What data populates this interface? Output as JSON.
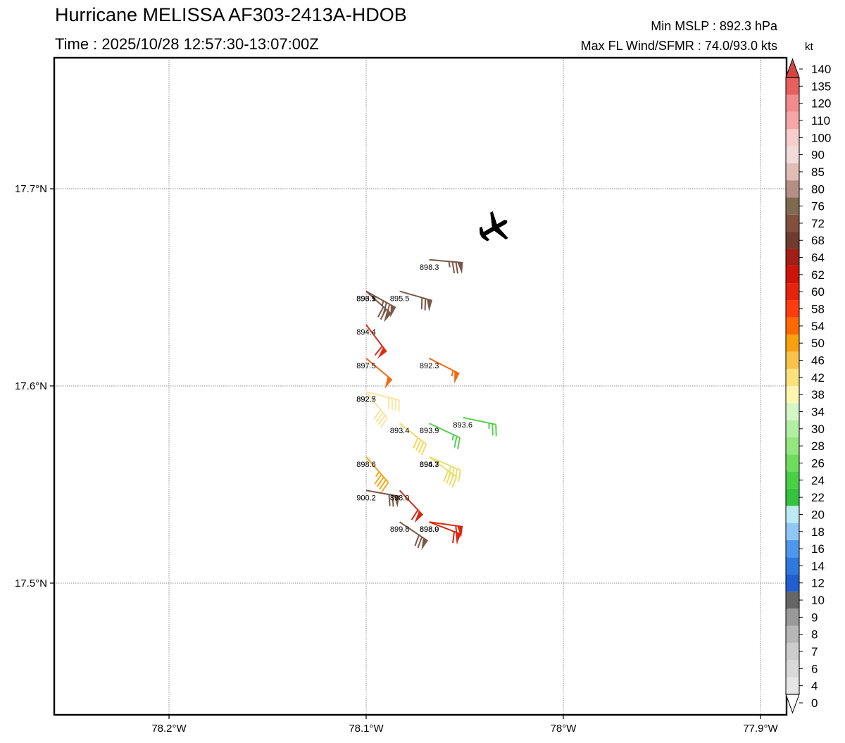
{
  "header": {
    "title": "Hurricane MELISSA AF303-2413A-HDOB",
    "time": "Time : 2025/10/28 12:57:30-13:07:00Z",
    "min_mslp": "Min MSLP : 892.3 hPa",
    "max_wind": "Max FL Wind/SFMR : 74.0/93.0 kts"
  },
  "map": {
    "lon_ticks": [
      {
        "value": -78.2,
        "label": "78.2°W"
      },
      {
        "value": -78.1,
        "label": "78.1°W"
      },
      {
        "value": -78.0,
        "label": "78°W"
      },
      {
        "value": -77.9,
        "label": "77.9°W"
      }
    ],
    "lat_ticks": [
      {
        "value": 17.7,
        "label": "17.7°N"
      },
      {
        "value": 17.6,
        "label": "17.6°N"
      },
      {
        "value": 17.5,
        "label": "17.5°N"
      }
    ],
    "aircraft": {
      "icon": "airplane-icon",
      "lon": -78.035,
      "lat": 17.68
    },
    "observations": [
      {
        "lon": -78.068,
        "lat": 17.664,
        "pressure": "898.3",
        "wind": 74,
        "color": "#7a5848"
      },
      {
        "lon": -78.1,
        "lat": 17.648,
        "pressure": "896.9",
        "wind": 72,
        "color": "#7a5848"
      },
      {
        "lon": -78.1,
        "lat": 17.648,
        "pressure": "893.1",
        "wind": 74,
        "color": "#7a5848"
      },
      {
        "lon": -78.083,
        "lat": 17.648,
        "pressure": "895.5",
        "wind": 72,
        "color": "#7a5848"
      },
      {
        "lon": -78.1,
        "lat": 17.631,
        "pressure": "894.4",
        "wind": 60,
        "color": "#e02b14"
      },
      {
        "lon": -78.1,
        "lat": 17.614,
        "pressure": "897.5",
        "wind": 50,
        "color": "#f26a12"
      },
      {
        "lon": -78.068,
        "lat": 17.614,
        "pressure": "892.3",
        "wind": 54,
        "color": "#f26a12"
      },
      {
        "lon": -78.1,
        "lat": 17.597,
        "pressure": "892.7",
        "wind": 38,
        "color": "#f9e5a0"
      },
      {
        "lon": -78.1,
        "lat": 17.597,
        "pressure": "892.5",
        "wind": 38,
        "color": "#f9e5a0"
      },
      {
        "lon": -78.083,
        "lat": 17.581,
        "pressure": "893.4",
        "wind": 38,
        "color": "#f4d862"
      },
      {
        "lon": -78.068,
        "lat": 17.581,
        "pressure": "893.9",
        "wind": 26,
        "color": "#57d052"
      },
      {
        "lon": -78.051,
        "lat": 17.584,
        "pressure": "893.6",
        "wind": 26,
        "color": "#57d052"
      },
      {
        "lon": -78.1,
        "lat": 17.564,
        "pressure": "898.6",
        "wind": 46,
        "color": "#f2a81e"
      },
      {
        "lon": -78.068,
        "lat": 17.564,
        "pressure": "896.7",
        "wind": 38,
        "color": "#e8e070"
      },
      {
        "lon": -78.068,
        "lat": 17.564,
        "pressure": "894.3",
        "wind": 38,
        "color": "#e8e070"
      },
      {
        "lon": -78.1,
        "lat": 17.547,
        "pressure": "900.2",
        "wind": 72,
        "color": "#7a5848"
      },
      {
        "lon": -78.083,
        "lat": 17.547,
        "pressure": "898.0",
        "wind": 58,
        "color": "#d42a12"
      },
      {
        "lon": -78.083,
        "lat": 17.531,
        "pressure": "899.8",
        "wind": 72,
        "color": "#7a5848"
      },
      {
        "lon": -78.068,
        "lat": 17.531,
        "pressure": "898.9",
        "wind": 62,
        "color": "#d42a12"
      },
      {
        "lon": -78.068,
        "lat": 17.531,
        "pressure": "898.0",
        "wind": 58,
        "color": "#d42a12"
      }
    ]
  },
  "colorbar": {
    "unit": "kt",
    "levels": [
      {
        "label": "0",
        "color": "#ffffff"
      },
      {
        "label": "4",
        "color": "#e6e6e6"
      },
      {
        "label": "6",
        "color": "#d9d9d9"
      },
      {
        "label": "7",
        "color": "#cdcdcd"
      },
      {
        "label": "8",
        "color": "#b7b7b7"
      },
      {
        "label": "9",
        "color": "#999999"
      },
      {
        "label": "10",
        "color": "#666666"
      },
      {
        "label": "12",
        "color": "#1f5fce"
      },
      {
        "label": "14",
        "color": "#2d79e0"
      },
      {
        "label": "16",
        "color": "#4d98ec"
      },
      {
        "label": "18",
        "color": "#8fc8f5"
      },
      {
        "label": "20",
        "color": "#bdeaf3"
      },
      {
        "label": "22",
        "color": "#33c33f"
      },
      {
        "label": "24",
        "color": "#49d045"
      },
      {
        "label": "26",
        "color": "#6edd5c"
      },
      {
        "label": "28",
        "color": "#92e77f"
      },
      {
        "label": "30",
        "color": "#b3efa3"
      },
      {
        "label": "34",
        "color": "#d3f7c7"
      },
      {
        "label": "38",
        "color": "#fff7b0"
      },
      {
        "label": "42",
        "color": "#fde27c"
      },
      {
        "label": "46",
        "color": "#f9c24a"
      },
      {
        "label": "50",
        "color": "#f7a10f"
      },
      {
        "label": "54",
        "color": "#ff6a00"
      },
      {
        "label": "58",
        "color": "#ff3b0f"
      },
      {
        "label": "60",
        "color": "#e8230b"
      },
      {
        "label": "62",
        "color": "#cc1508"
      },
      {
        "label": "64",
        "color": "#a31e14"
      },
      {
        "label": "68",
        "color": "#6f3c2e"
      },
      {
        "label": "72",
        "color": "#83503f"
      },
      {
        "label": "76",
        "color": "#7f6a50"
      },
      {
        "label": "80",
        "color": "#b58f84"
      },
      {
        "label": "85",
        "color": "#e3bdb5"
      },
      {
        "label": "90",
        "color": "#f1dcda"
      },
      {
        "label": "100",
        "color": "#f9cdcc"
      },
      {
        "label": "110",
        "color": "#f7a5a6"
      },
      {
        "label": "120",
        "color": "#f28b8e"
      },
      {
        "label": "135",
        "color": "#e85f60"
      },
      {
        "label": "140",
        "color": "#d94442"
      }
    ]
  }
}
